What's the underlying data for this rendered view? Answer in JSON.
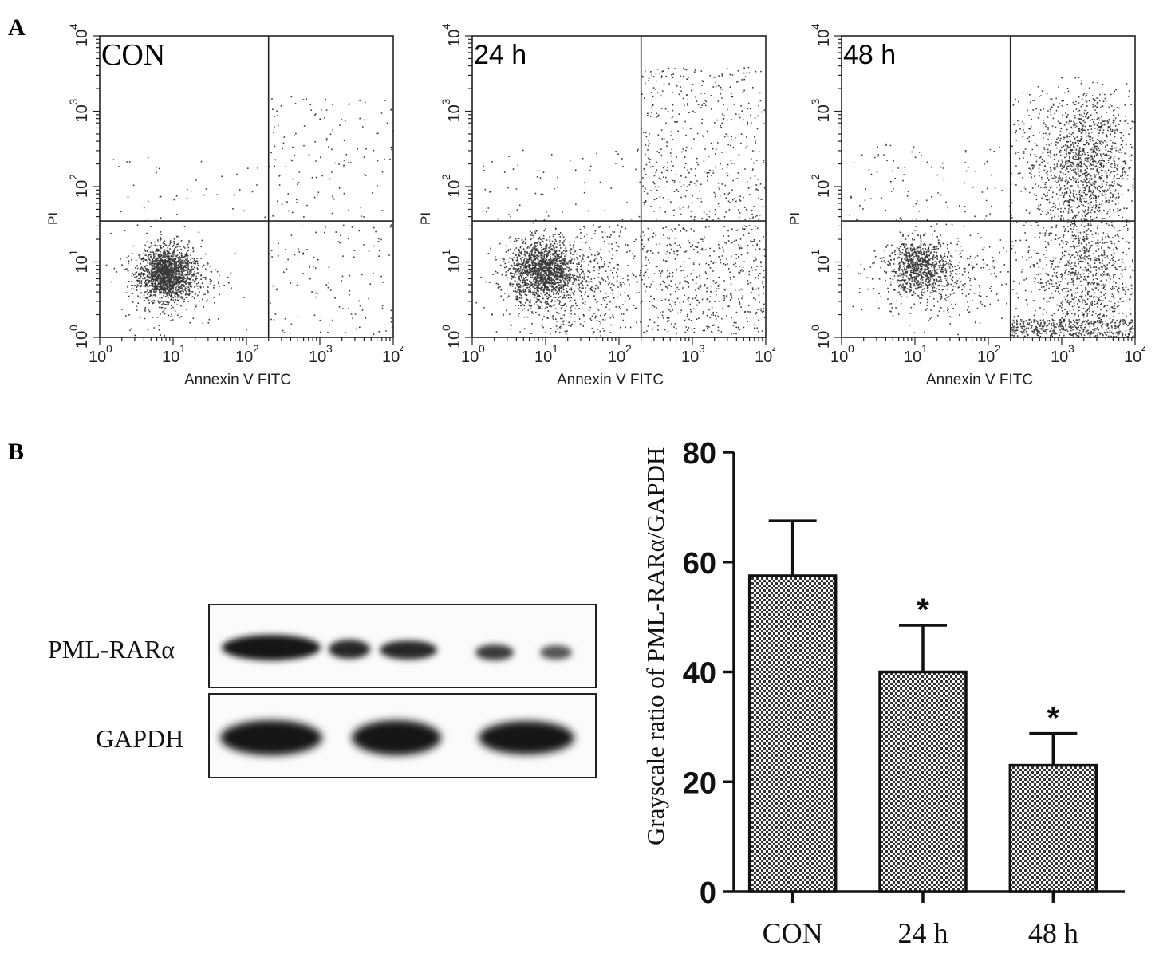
{
  "panel_a": {
    "letter": "A",
    "plots": [
      {
        "label": "CON",
        "xlabel": "Annexin V FITC",
        "ylabel": "PI"
      },
      {
        "label": "24 h",
        "xlabel": "Annexin V FITC",
        "ylabel": "PI"
      },
      {
        "label": "48 h",
        "xlabel": "Annexin V FITC",
        "ylabel": "PI"
      }
    ],
    "tick_labels": [
      "10",
      "10",
      "10",
      "10",
      "10"
    ],
    "tick_exponents": [
      "0",
      "1",
      "2",
      "3",
      "4"
    ]
  },
  "panel_b": {
    "letter": "B",
    "blot_labels": [
      "PML-RARα",
      "GAPDH"
    ]
  },
  "chart_data": [
    {
      "type": "scatter",
      "title": "CON",
      "xlabel": "Annexin V FITC",
      "ylabel": "PI",
      "xscale": "log",
      "yscale": "log",
      "xlim": [
        1,
        10000
      ],
      "ylim": [
        1,
        10000
      ],
      "xticks": [
        "10^0",
        "10^1",
        "10^2",
        "10^3",
        "10^4"
      ],
      "yticks": [
        "10^0",
        "10^1",
        "10^2",
        "10^3",
        "10^4"
      ],
      "quadrant_gate": {
        "x": 200,
        "y": 35
      }
    },
    {
      "type": "scatter",
      "title": "24 h",
      "xlabel": "Annexin V FITC",
      "ylabel": "PI",
      "xscale": "log",
      "yscale": "log",
      "xlim": [
        1,
        10000
      ],
      "ylim": [
        1,
        10000
      ],
      "xticks": [
        "10^0",
        "10^1",
        "10^2",
        "10^3",
        "10^4"
      ],
      "yticks": [
        "10^0",
        "10^1",
        "10^2",
        "10^3",
        "10^4"
      ],
      "quadrant_gate": {
        "x": 200,
        "y": 35
      }
    },
    {
      "type": "scatter",
      "title": "48 h",
      "xlabel": "Annexin V FITC",
      "ylabel": "PI",
      "xscale": "log",
      "yscale": "log",
      "xlim": [
        1,
        10000
      ],
      "ylim": [
        1,
        10000
      ],
      "xticks": [
        "10^0",
        "10^1",
        "10^2",
        "10^3",
        "10^4"
      ],
      "yticks": [
        "10^0",
        "10^1",
        "10^2",
        "10^3",
        "10^4"
      ],
      "quadrant_gate": {
        "x": 200,
        "y": 35
      }
    },
    {
      "type": "bar",
      "categories": [
        "CON",
        "24 h",
        "48 h"
      ],
      "values": [
        57.5,
        40,
        23
      ],
      "errors": [
        10,
        8.5,
        5.8
      ],
      "annotations": [
        "",
        "*",
        "*"
      ],
      "ylabel": "Grayscale ratio of PML-RARα/GAPDH",
      "ylim": [
        0,
        80
      ],
      "yticks": [
        0,
        20,
        40,
        60,
        80
      ],
      "grid": false
    }
  ]
}
